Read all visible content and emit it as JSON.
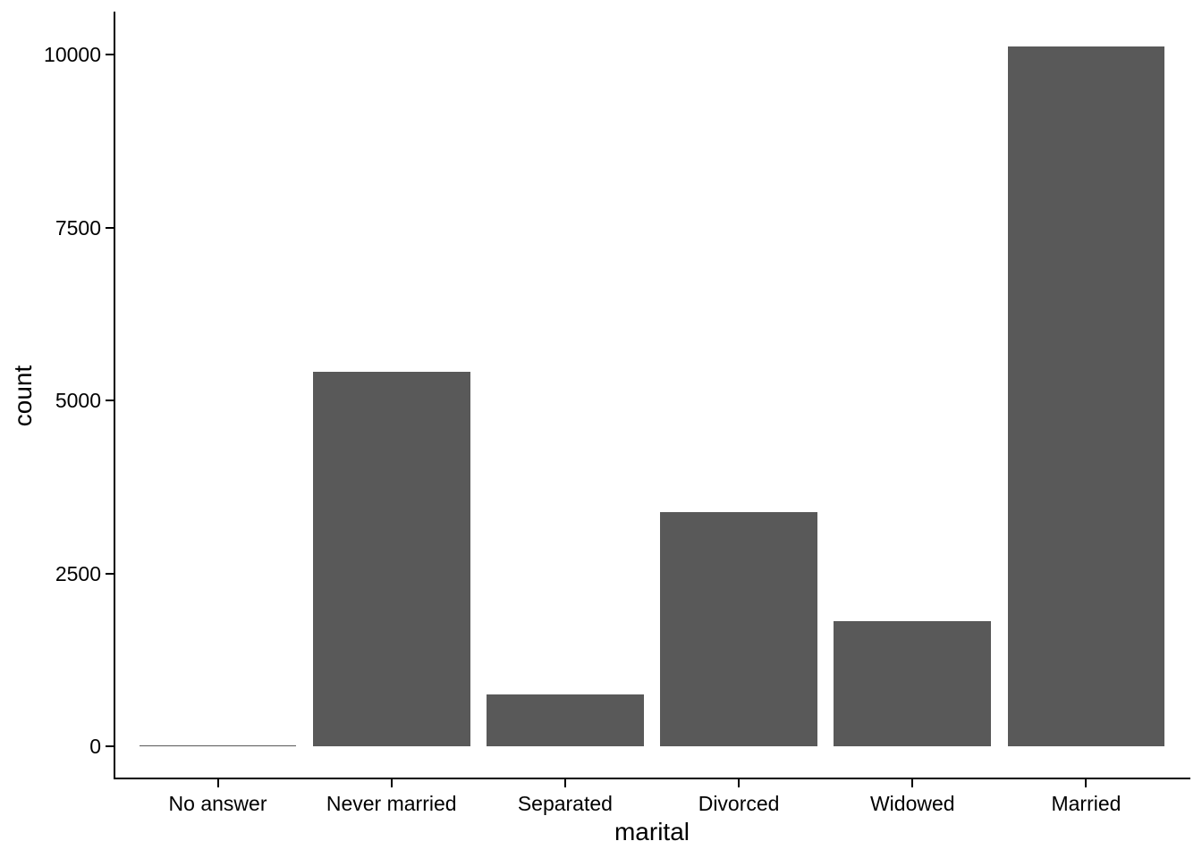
{
  "chart_data": {
    "type": "bar",
    "title": "",
    "xlabel": "marital",
    "ylabel": "count",
    "categories": [
      "No answer",
      "Never married",
      "Separated",
      "Divorced",
      "Widowed",
      "Married"
    ],
    "values": [
      17,
      5416,
      743,
      3383,
      1807,
      10117
    ],
    "y_ticks": [
      0,
      2500,
      5000,
      7500,
      10000
    ],
    "ylim": [
      -506,
      10623
    ],
    "bar_color": "#595959",
    "axis_color": "#000000",
    "text_color": "#000000",
    "background": "#ffffff",
    "grid": false,
    "legend": false
  }
}
